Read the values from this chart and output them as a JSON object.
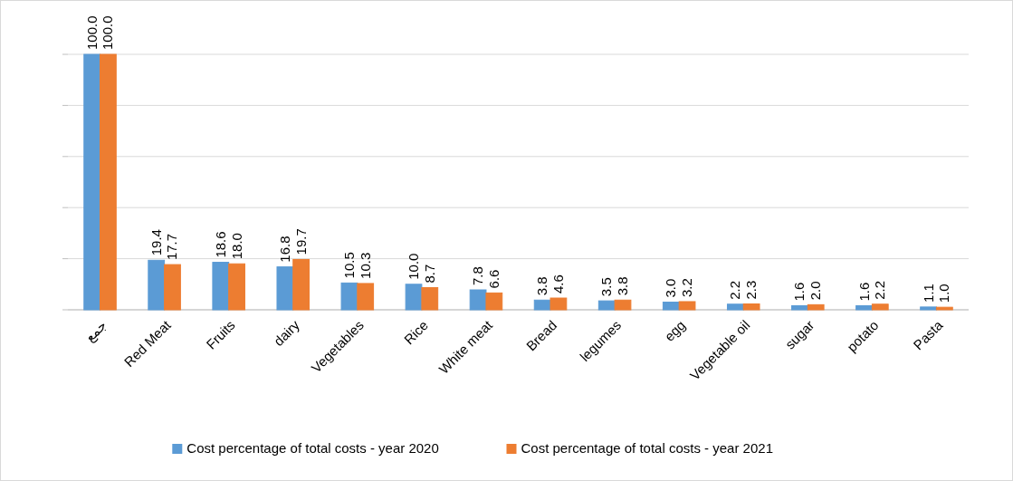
{
  "chart_data": {
    "type": "bar",
    "categories": [
      "جمع",
      "Red Meat",
      "Fruits",
      "dairy",
      "Vegetables",
      "Rice",
      "White meat",
      "Bread",
      "legumes",
      "egg",
      "Vegetable oil",
      "sugar",
      "potato",
      "Pasta"
    ],
    "series": [
      {
        "name": "Cost percentage of total costs - year 2020",
        "color": "#5b9bd5",
        "values": [
          100.0,
          19.4,
          18.6,
          16.8,
          10.5,
          10.0,
          7.8,
          3.8,
          3.5,
          3.0,
          2.2,
          1.6,
          1.6,
          1.1
        ],
        "value_labels": [
          "100.0",
          "19.4",
          "18.6",
          "16.8",
          "10.5",
          "10.0",
          "7.8",
          "3.8",
          "3.5",
          "3.0",
          "2.2",
          "1.6",
          "1.6",
          "1.1"
        ]
      },
      {
        "name": "Cost percentage of total costs - year 2021",
        "color": "#ed7d31",
        "values": [
          100.0,
          17.7,
          18.0,
          19.7,
          10.3,
          8.7,
          6.6,
          4.6,
          3.8,
          3.2,
          2.3,
          2.0,
          2.2,
          1.0
        ],
        "value_labels": [
          "100.0",
          "17.7",
          "18.0",
          "19.7",
          "10.3",
          "8.7",
          "6.6",
          "4.6",
          "3.8",
          "3.2",
          "2.3",
          "2.0",
          "2.2",
          "1.0"
        ]
      }
    ],
    "ylim": [
      0,
      100
    ],
    "yticks": [
      {
        "value": 0,
        "label": null
      },
      {
        "value": 20,
        "label": null
      },
      {
        "value": 40,
        "label": null
      },
      {
        "value": 60,
        "label": null
      },
      {
        "value": 80,
        "label": null
      },
      {
        "value": 100,
        "label": null
      }
    ],
    "tick_labels": "x",
    "grid": "y",
    "legend": "bottom"
  }
}
